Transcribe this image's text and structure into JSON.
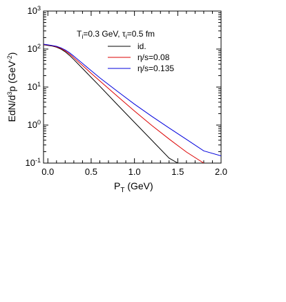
{
  "chart_data": {
    "type": "line",
    "title": "",
    "annotation": {
      "t_prefix": "T",
      "t_sub": "i",
      "t_value": "=0.3 GeV, ",
      "tau_prefix": "τ",
      "tau_sub": "i",
      "tau_value": "=0.5 fm"
    },
    "xlabel": {
      "main": "P",
      "sub": "T",
      "unit": " (GeV)"
    },
    "ylabel": {
      "main": "EdN/d",
      "sup1": "3",
      "mid": "p (GeV",
      "sup2": "-2",
      "end": ")"
    },
    "x_range": [
      -0.05,
      2.0
    ],
    "y_range": [
      0.1,
      1000
    ],
    "y_scale": "log",
    "grid": false,
    "legend_position": "top-right",
    "x_ticks": [
      {
        "value": 0.0,
        "label": "0.0"
      },
      {
        "value": 0.5,
        "label": "0.5"
      },
      {
        "value": 1.0,
        "label": "1.0"
      },
      {
        "value": 1.5,
        "label": "1.5"
      },
      {
        "value": 2.0,
        "label": "2.0"
      }
    ],
    "y_ticks": [
      {
        "value": 0.1,
        "base": "10",
        "exp": "-1"
      },
      {
        "value": 1,
        "base": "10",
        "exp": "0"
      },
      {
        "value": 10,
        "base": "10",
        "exp": "1"
      },
      {
        "value": 100,
        "base": "10",
        "exp": "2"
      },
      {
        "value": 1000,
        "base": "10",
        "exp": "3"
      }
    ],
    "series": [
      {
        "name": "id.",
        "color": "#000000",
        "x": [
          -0.05,
          0.0,
          0.05,
          0.1,
          0.15,
          0.2,
          0.25,
          0.3,
          0.4,
          0.5,
          0.6,
          0.8,
          1.0,
          1.2,
          1.4,
          1.5
        ],
        "y": [
          130,
          125,
          120,
          112,
          100,
          85,
          68,
          53,
          31,
          18,
          10.5,
          3.5,
          1.18,
          0.4,
          0.135,
          0.1
        ]
      },
      {
        "name": "η/s=0.08",
        "color": "#dd0000",
        "x": [
          -0.05,
          0.0,
          0.05,
          0.1,
          0.15,
          0.2,
          0.25,
          0.3,
          0.4,
          0.5,
          0.6,
          0.8,
          1.0,
          1.2,
          1.4,
          1.6,
          1.8
        ],
        "y": [
          132,
          127,
          122,
          115,
          104,
          90,
          74,
          59,
          37,
          23,
          14.5,
          5.8,
          2.35,
          0.98,
          0.43,
          0.195,
          0.1
        ]
      },
      {
        "name": "η/s=0.135",
        "color": "#0000dd",
        "x": [
          -0.05,
          0.0,
          0.05,
          0.1,
          0.15,
          0.2,
          0.25,
          0.3,
          0.4,
          0.5,
          0.6,
          0.8,
          1.0,
          1.2,
          1.4,
          1.6,
          1.8,
          2.0
        ],
        "y": [
          134,
          129,
          124,
          118,
          108,
          95,
          80,
          65,
          42,
          27,
          17.5,
          7.8,
          3.55,
          1.7,
          0.84,
          0.42,
          0.21,
          0.155
        ]
      }
    ]
  }
}
